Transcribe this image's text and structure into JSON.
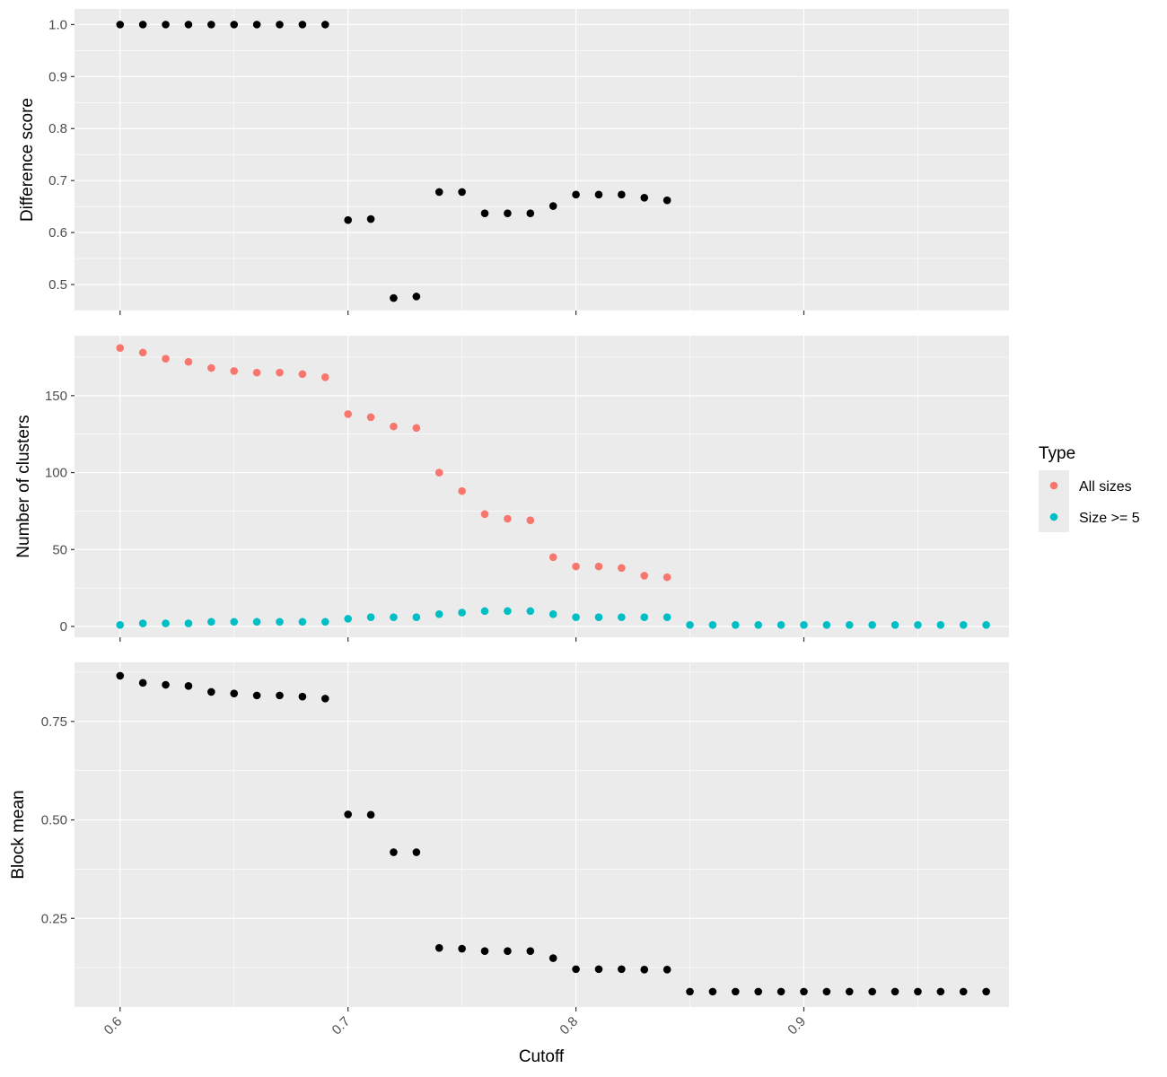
{
  "chart_data": {
    "type": "scatter",
    "xlabel": "Cutoff",
    "xlim": [
      0.58,
      0.99
    ],
    "xticks": [
      0.6,
      0.7,
      0.8,
      0.9
    ],
    "xtick_labels": [
      "0.6",
      "0.7",
      "0.8",
      "0.9"
    ],
    "x": [
      0.6,
      0.61,
      0.62,
      0.63,
      0.64,
      0.65,
      0.66,
      0.67,
      0.68,
      0.69,
      0.7,
      0.71,
      0.72,
      0.73,
      0.74,
      0.75,
      0.76,
      0.77,
      0.78,
      0.79,
      0.8,
      0.81,
      0.82,
      0.83,
      0.84,
      0.85,
      0.86,
      0.87,
      0.88,
      0.89,
      0.9,
      0.91,
      0.92,
      0.93,
      0.94,
      0.95,
      0.96,
      0.97,
      0.98
    ],
    "grid": true,
    "legend": {
      "title": "Type",
      "placement": "right",
      "entries": [
        {
          "label": "All sizes",
          "color": "#F8766D"
        },
        {
          "label": "Size >= 5",
          "color": "#00BFC4"
        }
      ]
    },
    "panels": [
      {
        "ylabel": "Difference score",
        "ylim": [
          0.45,
          1.03
        ],
        "yticks": [
          0.5,
          0.6,
          0.7,
          0.8,
          0.9,
          1.0
        ],
        "ytick_labels": [
          "0.5",
          "0.6",
          "0.7",
          "0.8",
          "0.9",
          "1.0"
        ],
        "series": [
          {
            "color": "#000000",
            "x": [
              0.6,
              0.61,
              0.62,
              0.63,
              0.64,
              0.65,
              0.66,
              0.67,
              0.68,
              0.69,
              0.7,
              0.71,
              0.72,
              0.73,
              0.74,
              0.75,
              0.76,
              0.77,
              0.78,
              0.79,
              0.8,
              0.81,
              0.82,
              0.83,
              0.84
            ],
            "y": [
              1.0,
              1.0,
              1.0,
              1.0,
              1.0,
              1.0,
              1.0,
              1.0,
              1.0,
              1.0,
              0.624,
              0.626,
              0.474,
              0.477,
              0.678,
              0.678,
              0.637,
              0.637,
              0.637,
              0.651,
              0.673,
              0.673,
              0.673,
              0.667,
              0.662
            ]
          }
        ]
      },
      {
        "ylabel": "Number of clusters",
        "ylim": [
          -7,
          189
        ],
        "yticks": [
          0,
          50,
          100,
          150
        ],
        "ytick_labels": [
          "0",
          "50",
          "100",
          "150"
        ],
        "series": [
          {
            "name": "All sizes",
            "color": "#F8766D",
            "x": [
              0.6,
              0.61,
              0.62,
              0.63,
              0.64,
              0.65,
              0.66,
              0.67,
              0.68,
              0.69,
              0.7,
              0.71,
              0.72,
              0.73,
              0.74,
              0.75,
              0.76,
              0.77,
              0.78,
              0.79,
              0.8,
              0.81,
              0.82,
              0.83,
              0.84
            ],
            "y": [
              181,
              178,
              174,
              172,
              168,
              166,
              165,
              165,
              164,
              162,
              138,
              136,
              130,
              129,
              100,
              88,
              73,
              70,
              69,
              45,
              39,
              39,
              38,
              33,
              32
            ]
          },
          {
            "name": "Size >= 5",
            "color": "#00BFC4",
            "x": [
              0.6,
              0.61,
              0.62,
              0.63,
              0.64,
              0.65,
              0.66,
              0.67,
              0.68,
              0.69,
              0.7,
              0.71,
              0.72,
              0.73,
              0.74,
              0.75,
              0.76,
              0.77,
              0.78,
              0.79,
              0.8,
              0.81,
              0.82,
              0.83,
              0.84,
              0.85,
              0.86,
              0.87,
              0.88,
              0.89,
              0.9,
              0.91,
              0.92,
              0.93,
              0.94,
              0.95,
              0.96,
              0.97,
              0.98
            ],
            "y": [
              1,
              2,
              2,
              2,
              3,
              3,
              3,
              3,
              3,
              3,
              5,
              6,
              6,
              6,
              8,
              9,
              10,
              10,
              10,
              8,
              6,
              6,
              6,
              6,
              6,
              1,
              1,
              1,
              1,
              1,
              1,
              1,
              1,
              1,
              1,
              1,
              1,
              1,
              1
            ]
          }
        ]
      },
      {
        "ylabel": "Block mean",
        "ylim": [
          0.025,
          0.9
        ],
        "yticks": [
          0.25,
          0.5,
          0.75
        ],
        "ytick_labels": [
          "0.25",
          "0.50",
          "0.75"
        ],
        "series": [
          {
            "color": "#000000",
            "x": [
              0.6,
              0.61,
              0.62,
              0.63,
              0.64,
              0.65,
              0.66,
              0.67,
              0.68,
              0.69,
              0.7,
              0.71,
              0.72,
              0.73,
              0.74,
              0.75,
              0.76,
              0.77,
              0.78,
              0.79,
              0.8,
              0.81,
              0.82,
              0.83,
              0.84,
              0.85,
              0.86,
              0.87,
              0.88,
              0.89,
              0.9,
              0.91,
              0.92,
              0.93,
              0.94,
              0.95,
              0.96,
              0.97,
              0.98
            ],
            "y": [
              0.866,
              0.848,
              0.843,
              0.84,
              0.825,
              0.821,
              0.816,
              0.816,
              0.813,
              0.808,
              0.514,
              0.513,
              0.418,
              0.418,
              0.175,
              0.173,
              0.167,
              0.167,
              0.167,
              0.149,
              0.121,
              0.121,
              0.121,
              0.12,
              0.12,
              0.064,
              0.064,
              0.064,
              0.064,
              0.064,
              0.064,
              0.064,
              0.064,
              0.064,
              0.064,
              0.064,
              0.064,
              0.064,
              0.064
            ]
          }
        ]
      }
    ]
  }
}
